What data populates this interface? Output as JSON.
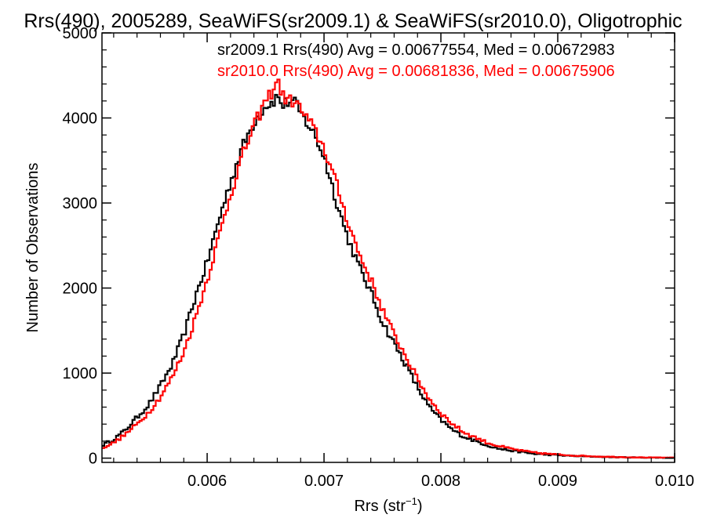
{
  "chart_data": {
    "type": "line",
    "title": "Rrs(490), 2005289, SeaWiFS(sr2009.1) & SeaWiFS(sr2010.0), Oligotrophic",
    "xlabel": "Rrs (str",
    "xlabel_sup": "−1",
    "xlabel_close": ")",
    "ylabel": "Number of Observations",
    "xlim": [
      0.0051,
      0.01
    ],
    "ylim": [
      -50,
      5000
    ],
    "x_ticks": [
      "0.006",
      "0.007",
      "0.008",
      "0.009",
      "0.010"
    ],
    "y_ticks": [
      "0",
      "1000",
      "2000",
      "3000",
      "4000",
      "5000"
    ],
    "grid": false,
    "legend_position": "top-right",
    "histogram_bin_width": 2e-05,
    "series": [
      {
        "name": "sr2009.1",
        "label": "sr2009.1 Rrs(490) Avg = 0.00677554, Med = 0.00672983",
        "color": "#000000",
        "x": [
          0.0051,
          0.0052,
          0.0053,
          0.0054,
          0.0055,
          0.0056,
          0.0057,
          0.0058,
          0.0059,
          0.006,
          0.0061,
          0.0062,
          0.0063,
          0.0064,
          0.0065,
          0.00655,
          0.0066,
          0.00665,
          0.0067,
          0.00675,
          0.0068,
          0.0069,
          0.007,
          0.0071,
          0.0072,
          0.0073,
          0.0074,
          0.0075,
          0.0076,
          0.0077,
          0.0078,
          0.0079,
          0.008,
          0.0081,
          0.0082,
          0.0083,
          0.0084,
          0.0085,
          0.0086,
          0.0087,
          0.0088,
          0.0089,
          0.009,
          0.0091,
          0.0092,
          0.0093,
          0.0094,
          0.0095,
          0.0096,
          0.0097,
          0.0098,
          0.0099,
          0.01
        ],
        "y": [
          150,
          220,
          330,
          480,
          630,
          850,
          1100,
          1450,
          1900,
          2300,
          2800,
          3250,
          3650,
          3950,
          4150,
          4180,
          4250,
          4150,
          4200,
          4180,
          4050,
          3850,
          3550,
          3050,
          2600,
          2250,
          1950,
          1600,
          1350,
          1100,
          830,
          600,
          450,
          330,
          250,
          200,
          150,
          110,
          90,
          70,
          50,
          42,
          35,
          28,
          22,
          18,
          14,
          11,
          9,
          7,
          6,
          5,
          4
        ]
      },
      {
        "name": "sr2010.0",
        "label": "sr2010.0 Rrs(490) Avg = 0.00681836, Med = 0.00675906",
        "color": "#ff0000",
        "x": [
          0.0051,
          0.0052,
          0.0053,
          0.0054,
          0.0055,
          0.0056,
          0.0057,
          0.0058,
          0.0059,
          0.006,
          0.0061,
          0.0062,
          0.0063,
          0.0064,
          0.0065,
          0.00655,
          0.0066,
          0.00665,
          0.0067,
          0.00675,
          0.0068,
          0.0069,
          0.007,
          0.0071,
          0.0072,
          0.0073,
          0.0074,
          0.0075,
          0.0076,
          0.0077,
          0.0078,
          0.0079,
          0.008,
          0.0081,
          0.0082,
          0.0083,
          0.0084,
          0.0085,
          0.0086,
          0.0087,
          0.0088,
          0.0089,
          0.009,
          0.0091,
          0.0092,
          0.0093,
          0.0094,
          0.0095,
          0.0096,
          0.0097,
          0.0098,
          0.0099,
          0.01
        ],
        "y": [
          120,
          180,
          280,
          400,
          540,
          720,
          950,
          1250,
          1650,
          2100,
          2600,
          3100,
          3550,
          3900,
          4200,
          4300,
          4450,
          4250,
          4200,
          4200,
          4100,
          3900,
          3650,
          3250,
          2800,
          2400,
          2100,
          1750,
          1450,
          1200,
          930,
          700,
          530,
          400,
          300,
          240,
          180,
          140,
          110,
          85,
          65,
          52,
          42,
          34,
          27,
          22,
          17,
          14,
          11,
          9,
          7,
          6,
          5
        ]
      }
    ]
  }
}
